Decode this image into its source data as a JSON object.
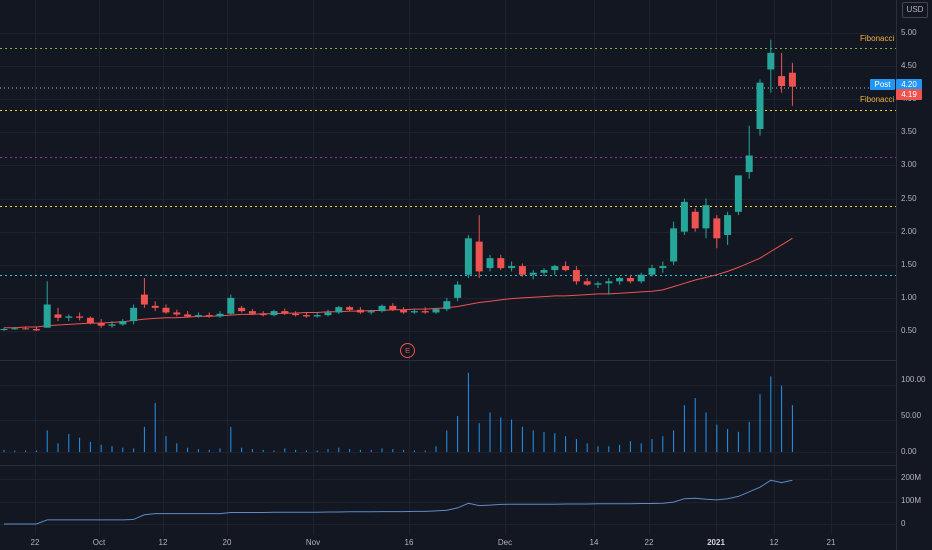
{
  "currency_label": "USD",
  "price_axis_labels": [
    "5.00",
    "4.50",
    "4.00",
    "3.50",
    "3.00",
    "2.50",
    "2.00",
    "1.50",
    "1.00",
    "0.50"
  ],
  "volume_axis_labels": [
    "100.00",
    "50.00",
    "0.00"
  ],
  "cum_axis_labels": [
    "200M",
    "100M",
    "0"
  ],
  "fib_label": "Fibonacci",
  "post_label": "Post",
  "post_price": "4.20",
  "last_price": "4.19",
  "earnings_badge": "E",
  "x_ticks": [
    {
      "label": "22",
      "bold": false
    },
    {
      "label": "Oct",
      "bold": false
    },
    {
      "label": "12",
      "bold": false
    },
    {
      "label": "20",
      "bold": false
    },
    {
      "label": "Nov",
      "bold": false
    },
    {
      "label": "16",
      "bold": false
    },
    {
      "label": "Dec",
      "bold": false
    },
    {
      "label": "14",
      "bold": false
    },
    {
      "label": "22",
      "bold": false
    },
    {
      "label": "2021",
      "bold": true
    },
    {
      "label": "12",
      "bold": false
    },
    {
      "label": "21",
      "bold": false
    }
  ],
  "colors": {
    "up": "#26a69a",
    "down": "#ef5350",
    "ma": "#ef5350",
    "volume": "#2196f3",
    "cum": "#5b8cc9",
    "post_bg": "#2196f3",
    "last_bg": "#ef5350"
  },
  "chart_data": {
    "type": "candlestick",
    "fib_levels": [
      4.78,
      3.83,
      3.12,
      2.39,
      1.34
    ],
    "ohlc": [
      [
        0.52,
        0.55,
        0.5,
        0.53
      ],
      [
        0.53,
        0.56,
        0.52,
        0.54
      ],
      [
        0.54,
        0.56,
        0.52,
        0.53
      ],
      [
        0.53,
        0.56,
        0.5,
        0.51
      ],
      [
        0.55,
        1.25,
        0.55,
        0.9
      ],
      [
        0.75,
        0.85,
        0.65,
        0.7
      ],
      [
        0.7,
        0.75,
        0.65,
        0.72
      ],
      [
        0.72,
        0.78,
        0.66,
        0.7
      ],
      [
        0.7,
        0.72,
        0.6,
        0.62
      ],
      [
        0.62,
        0.68,
        0.55,
        0.58
      ],
      [
        0.58,
        0.65,
        0.55,
        0.6
      ],
      [
        0.6,
        0.68,
        0.58,
        0.65
      ],
      [
        0.65,
        0.9,
        0.6,
        0.85
      ],
      [
        1.05,
        1.3,
        0.85,
        0.9
      ],
      [
        0.88,
        0.95,
        0.8,
        0.85
      ],
      [
        0.85,
        0.9,
        0.76,
        0.78
      ],
      [
        0.78,
        0.82,
        0.72,
        0.75
      ],
      [
        0.75,
        0.8,
        0.7,
        0.72
      ],
      [
        0.72,
        0.78,
        0.7,
        0.74
      ],
      [
        0.74,
        0.78,
        0.7,
        0.72
      ],
      [
        0.72,
        0.8,
        0.7,
        0.76
      ],
      [
        0.76,
        1.05,
        0.74,
        1.0
      ],
      [
        0.85,
        0.88,
        0.78,
        0.8
      ],
      [
        0.8,
        0.83,
        0.74,
        0.76
      ],
      [
        0.76,
        0.8,
        0.72,
        0.74
      ],
      [
        0.74,
        0.82,
        0.72,
        0.8
      ],
      [
        0.8,
        0.84,
        0.74,
        0.76
      ],
      [
        0.76,
        0.8,
        0.72,
        0.74
      ],
      [
        0.74,
        0.78,
        0.7,
        0.72
      ],
      [
        0.72,
        0.78,
        0.7,
        0.74
      ],
      [
        0.74,
        0.82,
        0.72,
        0.78
      ],
      [
        0.78,
        0.88,
        0.76,
        0.86
      ],
      [
        0.86,
        0.88,
        0.8,
        0.82
      ],
      [
        0.82,
        0.86,
        0.76,
        0.78
      ],
      [
        0.78,
        0.82,
        0.75,
        0.8
      ],
      [
        0.8,
        0.9,
        0.78,
        0.88
      ],
      [
        0.88,
        0.92,
        0.8,
        0.82
      ],
      [
        0.82,
        0.86,
        0.76,
        0.78
      ],
      [
        0.78,
        0.84,
        0.76,
        0.8
      ],
      [
        0.8,
        0.86,
        0.76,
        0.78
      ],
      [
        0.78,
        0.85,
        0.76,
        0.83
      ],
      [
        0.83,
        1.0,
        0.8,
        0.95
      ],
      [
        1.0,
        1.25,
        0.95,
        1.2
      ],
      [
        1.35,
        1.95,
        1.3,
        1.9
      ],
      [
        1.85,
        2.25,
        1.3,
        1.4
      ],
      [
        1.45,
        1.65,
        1.4,
        1.6
      ],
      [
        1.6,
        1.65,
        1.42,
        1.45
      ],
      [
        1.45,
        1.55,
        1.4,
        1.48
      ],
      [
        1.48,
        1.52,
        1.32,
        1.35
      ],
      [
        1.35,
        1.42,
        1.28,
        1.38
      ],
      [
        1.38,
        1.45,
        1.33,
        1.42
      ],
      [
        1.42,
        1.5,
        1.35,
        1.48
      ],
      [
        1.48,
        1.55,
        1.4,
        1.42
      ],
      [
        1.42,
        1.48,
        1.2,
        1.25
      ],
      [
        1.25,
        1.3,
        1.18,
        1.2
      ],
      [
        1.2,
        1.25,
        1.15,
        1.22
      ],
      [
        1.22,
        1.3,
        1.05,
        1.25
      ],
      [
        1.25,
        1.32,
        1.2,
        1.3
      ],
      [
        1.3,
        1.35,
        1.22,
        1.25
      ],
      [
        1.25,
        1.38,
        1.22,
        1.35
      ],
      [
        1.35,
        1.5,
        1.32,
        1.45
      ],
      [
        1.45,
        1.55,
        1.38,
        1.48
      ],
      [
        1.55,
        2.15,
        1.5,
        2.05
      ],
      [
        2.0,
        2.5,
        1.95,
        2.45
      ],
      [
        2.3,
        2.35,
        2.0,
        2.05
      ],
      [
        2.05,
        2.5,
        1.9,
        2.4
      ],
      [
        2.2,
        2.25,
        1.75,
        1.9
      ],
      [
        1.95,
        2.3,
        1.8,
        2.25
      ],
      [
        2.3,
        2.85,
        2.25,
        2.85
      ],
      [
        2.9,
        3.6,
        2.8,
        3.15
      ],
      [
        3.55,
        4.3,
        3.45,
        4.25
      ],
      [
        4.45,
        4.9,
        4.1,
        4.7
      ],
      [
        4.35,
        4.7,
        4.1,
        4.2
      ],
      [
        4.4,
        4.55,
        3.9,
        4.19
      ]
    ],
    "ma": [
      0.55,
      0.55,
      0.56,
      0.56,
      0.58,
      0.59,
      0.6,
      0.61,
      0.62,
      0.62,
      0.63,
      0.64,
      0.66,
      0.68,
      0.69,
      0.7,
      0.7,
      0.71,
      0.72,
      0.72,
      0.73,
      0.74,
      0.75,
      0.75,
      0.76,
      0.76,
      0.77,
      0.77,
      0.78,
      0.78,
      0.79,
      0.79,
      0.8,
      0.8,
      0.81,
      0.81,
      0.82,
      0.82,
      0.83,
      0.83,
      0.84,
      0.85,
      0.87,
      0.9,
      0.93,
      0.95,
      0.97,
      0.99,
      1.0,
      1.01,
      1.02,
      1.03,
      1.03,
      1.04,
      1.05,
      1.06,
      1.06,
      1.07,
      1.08,
      1.09,
      1.1,
      1.12,
      1.17,
      1.22,
      1.27,
      1.31,
      1.35,
      1.4,
      1.46,
      1.53,
      1.6,
      1.7,
      1.8,
      1.9
    ],
    "volume": [
      3,
      2,
      2,
      2,
      30,
      12,
      25,
      20,
      14,
      10,
      8,
      6,
      5,
      35,
      68,
      22,
      12,
      6,
      4,
      3,
      5,
      35,
      6,
      4,
      3,
      2,
      5,
      3,
      2,
      2,
      4,
      6,
      4,
      3,
      3,
      5,
      4,
      3,
      2,
      2,
      8,
      30,
      50,
      110,
      40,
      55,
      48,
      45,
      35,
      30,
      28,
      26,
      22,
      18,
      12,
      8,
      8,
      10,
      15,
      12,
      18,
      22,
      30,
      65,
      75,
      55,
      38,
      32,
      28,
      42,
      80,
      105,
      92,
      65
    ],
    "volume_ylim": [
      0,
      110
    ],
    "cumulative": [
      0,
      0,
      0,
      0,
      18,
      18,
      18,
      18,
      18,
      18,
      18,
      18,
      20,
      40,
      45,
      45,
      45,
      45,
      45,
      45,
      45,
      50,
      50,
      50,
      50,
      51,
      51,
      51,
      51,
      51,
      52,
      52,
      53,
      53,
      53,
      54,
      54,
      54,
      55,
      55,
      57,
      60,
      70,
      90,
      80,
      82,
      85,
      86,
      86,
      86,
      86,
      86,
      87,
      87,
      87,
      88,
      88,
      88,
      88,
      89,
      89,
      90,
      95,
      110,
      112,
      108,
      105,
      110,
      120,
      140,
      160,
      190,
      180,
      190
    ],
    "cum_ylim": [
      -20,
      230
    ],
    "price_ylim": [
      0.25,
      5.25
    ]
  }
}
